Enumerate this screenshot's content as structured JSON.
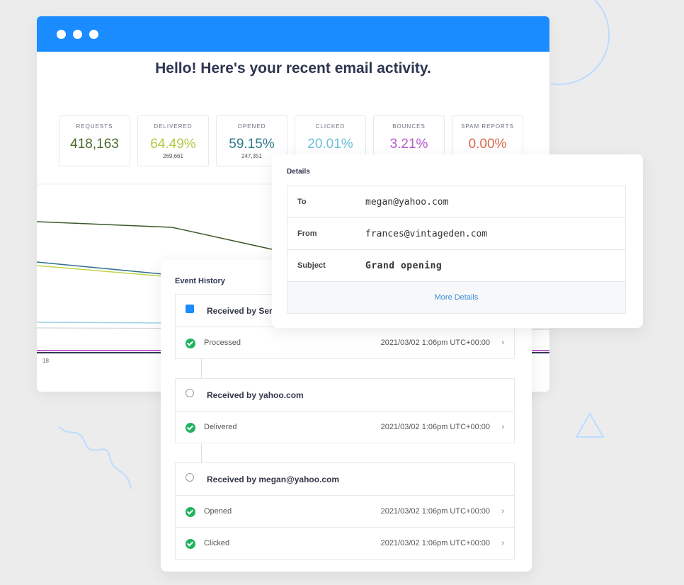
{
  "window": {
    "title": "Hello! Here's your recent email activity.",
    "stats": [
      {
        "label": "REQUESTS",
        "value": "418,163"
      },
      {
        "label": "DELIVERED",
        "value": "64.49%",
        "sub": "269,661"
      },
      {
        "label": "OPENED",
        "value": "59.15%",
        "sub": "247,351"
      },
      {
        "label": "CLICKED",
        "value": "20.01%"
      },
      {
        "label": "BOUNCES",
        "value": "3.21%"
      },
      {
        "label": "SPAM REPORTS",
        "value": "0.00%"
      }
    ],
    "chart": {
      "x_label": "18"
    }
  },
  "details": {
    "title": "Details",
    "rows": [
      {
        "label": "To",
        "value": "megan@yahoo.com"
      },
      {
        "label": "From",
        "value": "frances@vintageden.com"
      },
      {
        "label": "Subject",
        "value": "Grand opening"
      }
    ],
    "link": "More Details"
  },
  "event_history": {
    "title": "Event History",
    "groups": [
      {
        "title": "Received by Ser",
        "events": [
          {
            "status": "Processed",
            "time": "2021/03/02 1:06pm UTC+00:00"
          }
        ]
      },
      {
        "title": "Received by yahoo.com",
        "events": [
          {
            "status": "Delivered",
            "time": "2021/03/02 1:06pm UTC+00:00"
          }
        ]
      },
      {
        "title": "Received by megan@yahoo.com",
        "events": [
          {
            "status": "Opened",
            "time": "2021/03/02 1:06pm UTC+00:00"
          },
          {
            "status": "Clicked",
            "time": "2021/03/02 1:06pm UTC+00:00"
          }
        ]
      }
    ]
  }
}
